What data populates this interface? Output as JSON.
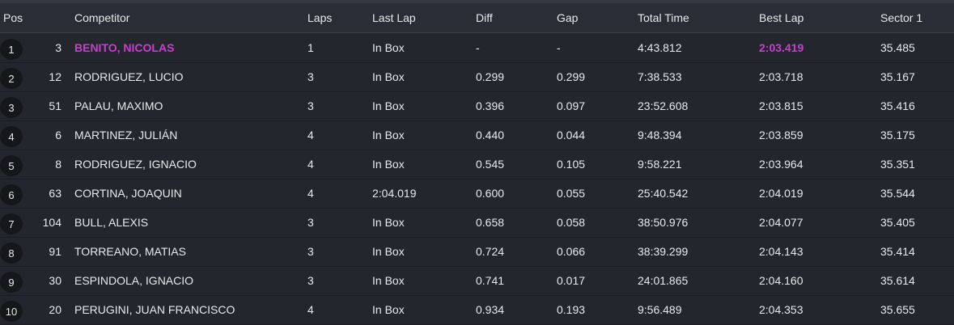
{
  "header": {
    "pos": "Pos",
    "competitor": "Competitor",
    "laps": "Laps",
    "last_lap": "Last Lap",
    "diff": "Diff",
    "gap": "Gap",
    "total_time": "Total Time",
    "best_lap": "Best Lap",
    "sector1": "Sector 1"
  },
  "colors": {
    "background": "#23262d",
    "header_background": "#2a2d35",
    "highlight": "#c83fce",
    "text": "#e8e9eb"
  },
  "rows": [
    {
      "pos": "1",
      "num": "3",
      "name": "BENITO, NICOLAS",
      "laps": "1",
      "last_lap": "In Box",
      "diff": "-",
      "gap": "-",
      "total": "4:43.812",
      "best": "2:03.419",
      "s1": "35.485"
    },
    {
      "pos": "2",
      "num": "12",
      "name": "RODRIGUEZ, LUCIO",
      "laps": "3",
      "last_lap": "In Box",
      "diff": "0.299",
      "gap": "0.299",
      "total": "7:38.533",
      "best": "2:03.718",
      "s1": "35.167"
    },
    {
      "pos": "3",
      "num": "51",
      "name": "PALAU, MAXIMO",
      "laps": "3",
      "last_lap": "In Box",
      "diff": "0.396",
      "gap": "0.097",
      "total": "23:52.608",
      "best": "2:03.815",
      "s1": "35.416"
    },
    {
      "pos": "4",
      "num": "6",
      "name": "MARTINEZ, JULIÁN",
      "laps": "4",
      "last_lap": "In Box",
      "diff": "0.440",
      "gap": "0.044",
      "total": "9:48.394",
      "best": "2:03.859",
      "s1": "35.175"
    },
    {
      "pos": "5",
      "num": "8",
      "name": "RODRIGUEZ, IGNACIO",
      "laps": "4",
      "last_lap": "In Box",
      "diff": "0.545",
      "gap": "0.105",
      "total": "9:58.221",
      "best": "2:03.964",
      "s1": "35.351"
    },
    {
      "pos": "6",
      "num": "63",
      "name": "CORTINA, JOAQUIN",
      "laps": "4",
      "last_lap": "2:04.019",
      "diff": "0.600",
      "gap": "0.055",
      "total": "25:40.542",
      "best": "2:04.019",
      "s1": "35.544"
    },
    {
      "pos": "7",
      "num": "104",
      "name": "BULL, ALEXIS",
      "laps": "3",
      "last_lap": "In Box",
      "diff": "0.658",
      "gap": "0.058",
      "total": "38:50.976",
      "best": "2:04.077",
      "s1": "35.405"
    },
    {
      "pos": "8",
      "num": "91",
      "name": "TORREANO, MATIAS",
      "laps": "3",
      "last_lap": "In Box",
      "diff": "0.724",
      "gap": "0.066",
      "total": "38:39.299",
      "best": "2:04.143",
      "s1": "35.414"
    },
    {
      "pos": "9",
      "num": "30",
      "name": "ESPINDOLA, IGNACIO",
      "laps": "3",
      "last_lap": "In Box",
      "diff": "0.741",
      "gap": "0.017",
      "total": "24:01.865",
      "best": "2:04.160",
      "s1": "35.614"
    },
    {
      "pos": "10",
      "num": "20",
      "name": "PERUGINI, JUAN FRANCISCO",
      "laps": "4",
      "last_lap": "In Box",
      "diff": "0.934",
      "gap": "0.193",
      "total": "9:56.489",
      "best": "2:04.353",
      "s1": "35.655"
    }
  ]
}
